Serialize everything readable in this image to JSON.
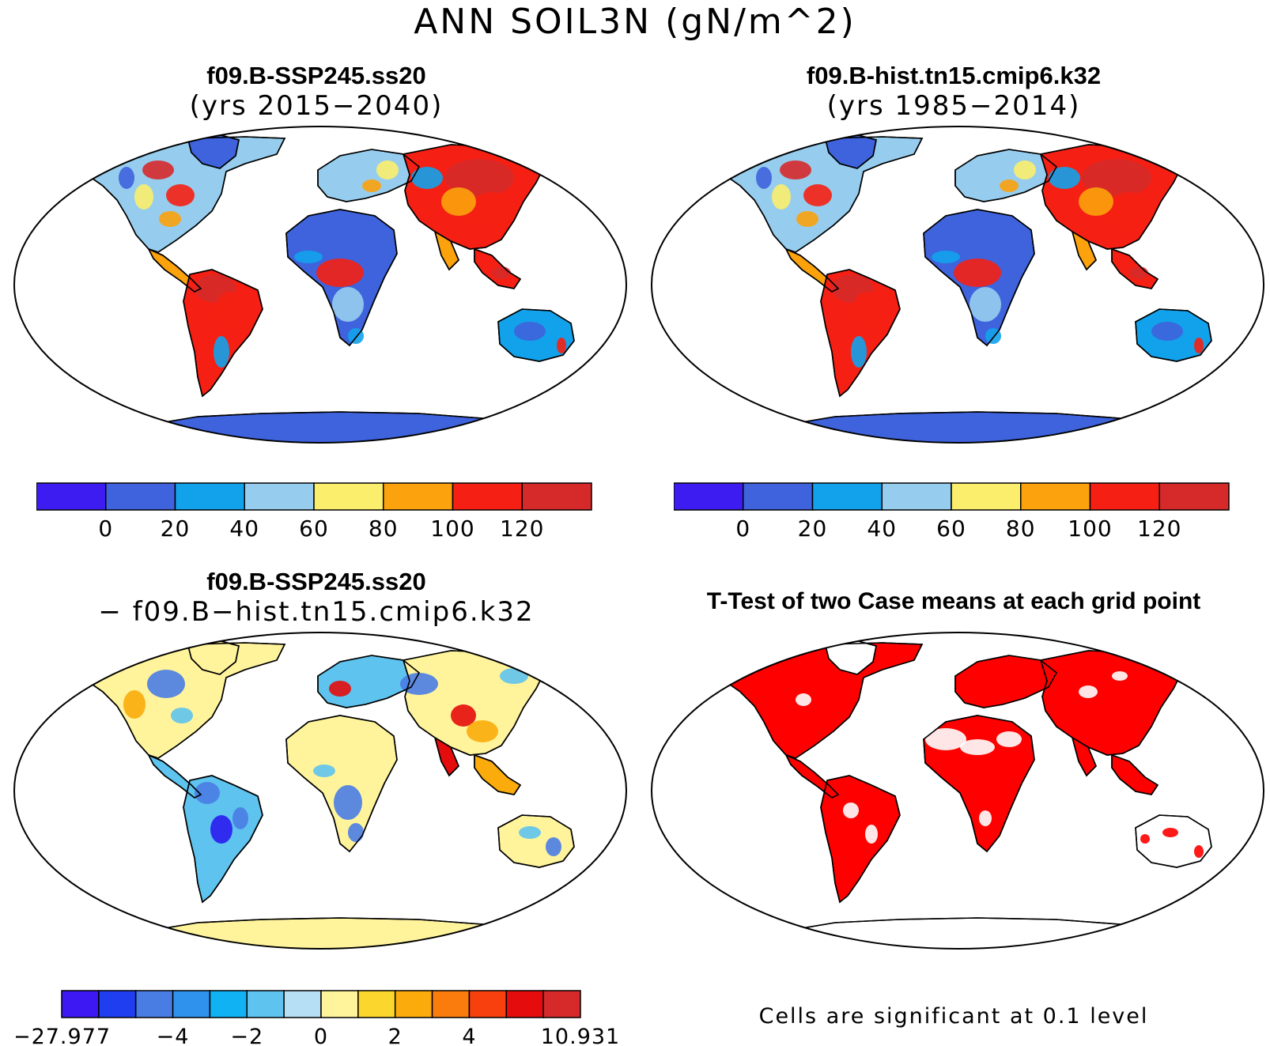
{
  "figure": {
    "title": "ANN SOIL3N (gN/m^2)"
  },
  "panels": [
    {
      "id": "test",
      "case_name": "f09.B-SSP245.ss20",
      "subtitle": "(yrs 2015−2040)"
    },
    {
      "id": "control",
      "case_name": "f09.B-hist.tn15.cmip6.k32",
      "subtitle": "(yrs 1985−2014)"
    },
    {
      "id": "difference",
      "case_name": "f09.B-SSP245.ss20",
      "subtitle": "− f09.B−hist.tn15.cmip6.k32"
    },
    {
      "id": "ttest",
      "case_name": "T-Test of two Case means at each grid point",
      "note": "Cells are significant at 0.1 level"
    }
  ],
  "colorbar_abs": {
    "colors": [
      "#3d1cf2",
      "#3e63dc",
      "#12a2ec",
      "#96cdee",
      "#fbee6c",
      "#fba20c",
      "#f52013",
      "#d62a2a"
    ],
    "tick_labels": [
      "0",
      "20",
      "40",
      "60",
      "80",
      "100",
      "120"
    ]
  },
  "colorbar_diff": {
    "colors": [
      "#3d18f2",
      "#1e3ef0",
      "#4a7de4",
      "#2f92ec",
      "#10b2f4",
      "#5ec3ee",
      "#b6def4",
      "#fff49c",
      "#fbd62c",
      "#fbac0c",
      "#f97c0c",
      "#f7400e",
      "#e40c0c",
      "#d62a2a"
    ],
    "tick_labels": [
      "−27.977",
      "−4",
      "−2",
      "0",
      "2",
      "4",
      "10.931"
    ]
  },
  "map_colors": {
    "land_low": "#3e63dc",
    "land_mid": "#12a2ec",
    "land_light": "#96cdee",
    "land_yellow": "#fbee6c",
    "land_orange": "#fba20c",
    "land_red": "#f52013",
    "land_dark": "#d62a2a",
    "diff_yellow": "#fff49c",
    "diff_blue": "#4a7de4",
    "diff_cyan": "#5ec3ee",
    "diff_orange": "#fbac0c",
    "diff_red": "#e40c0c",
    "diff_deepblue": "#2a1cf0",
    "sig_red": "#ff0000"
  }
}
